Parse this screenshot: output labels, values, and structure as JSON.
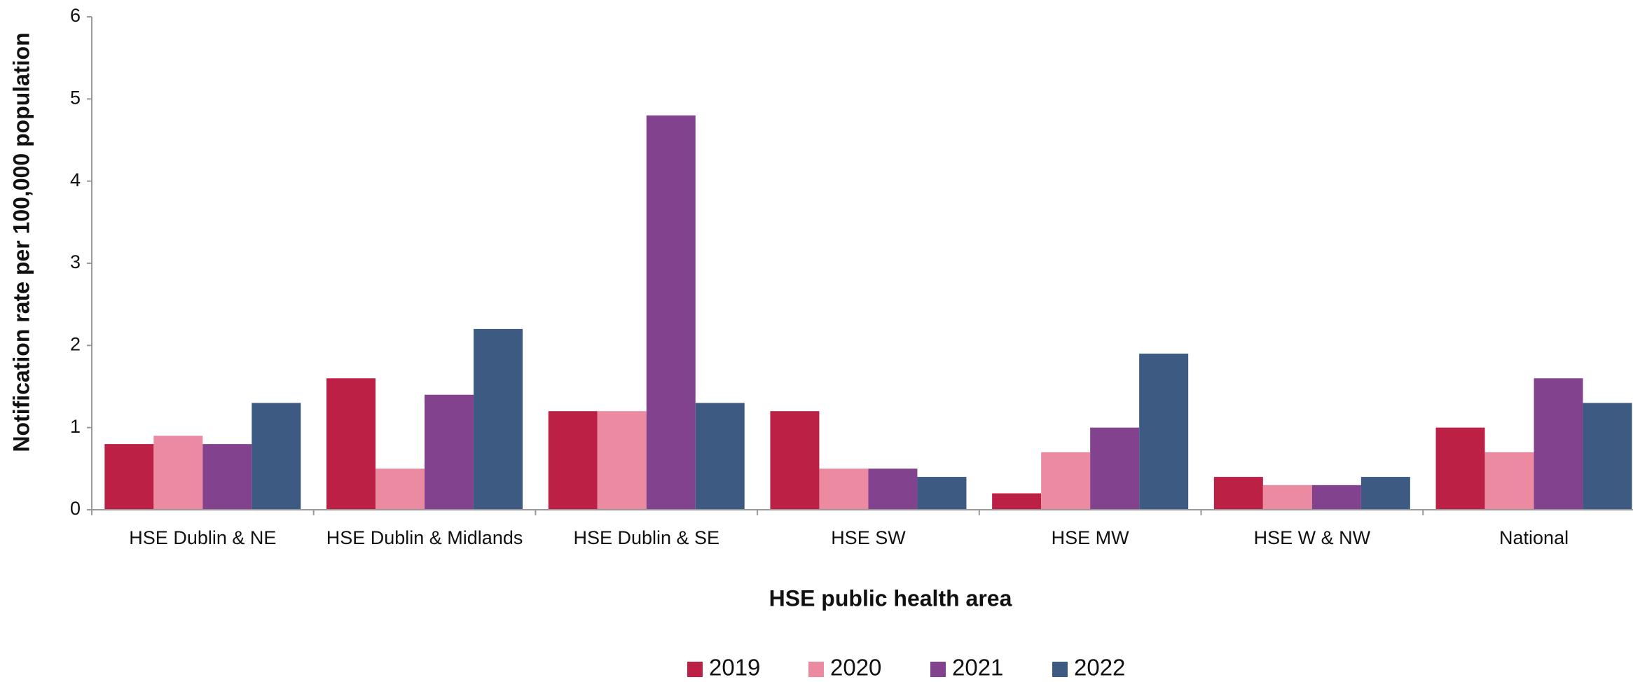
{
  "chart_data": {
    "type": "bar",
    "xlabel": "HSE public health area",
    "ylabel": "Notification rate per 100,000 population",
    "categories": [
      "HSE Dublin & NE",
      "HSE Dublin & Midlands",
      "HSE Dublin & SE",
      "HSE SW",
      "HSE MW",
      "HSE W & NW",
      "National"
    ],
    "series": [
      {
        "name": "2019",
        "color": "#bc2044",
        "values": [
          0.8,
          1.6,
          1.2,
          1.2,
          0.2,
          0.4,
          1.0
        ]
      },
      {
        "name": "2020",
        "color": "#eb8aa0",
        "values": [
          0.9,
          0.5,
          1.2,
          0.5,
          0.7,
          0.3,
          0.7
        ]
      },
      {
        "name": "2021",
        "color": "#83428e",
        "values": [
          0.8,
          1.4,
          4.8,
          0.5,
          1.0,
          0.3,
          1.6
        ]
      },
      {
        "name": "2022",
        "color": "#3d5a82",
        "values": [
          1.3,
          2.2,
          1.3,
          0.4,
          1.9,
          0.4,
          1.3
        ]
      }
    ],
    "ylim": [
      0,
      6
    ],
    "yticks": [
      0,
      1,
      2,
      3,
      4,
      5,
      6
    ],
    "grid": false,
    "legend": "bottom"
  }
}
